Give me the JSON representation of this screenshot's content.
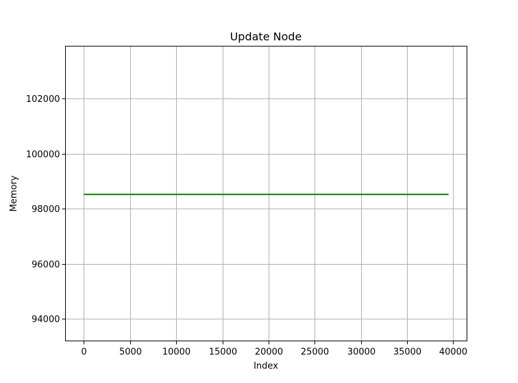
{
  "chart_data": {
    "type": "line",
    "title": "Update Node",
    "xlabel": "Index",
    "ylabel": "Memory",
    "xlim": [
      -2000,
      41500
    ],
    "ylim": [
      93200,
      103900
    ],
    "xticks": [
      0,
      5000,
      10000,
      15000,
      20000,
      25000,
      30000,
      35000,
      40000
    ],
    "yticks": [
      94000,
      96000,
      98000,
      100000,
      102000
    ],
    "grid": true,
    "series": [
      {
        "color": "#008000",
        "x": [
          0,
          39500
        ],
        "y": [
          98520,
          98520
        ]
      }
    ]
  }
}
